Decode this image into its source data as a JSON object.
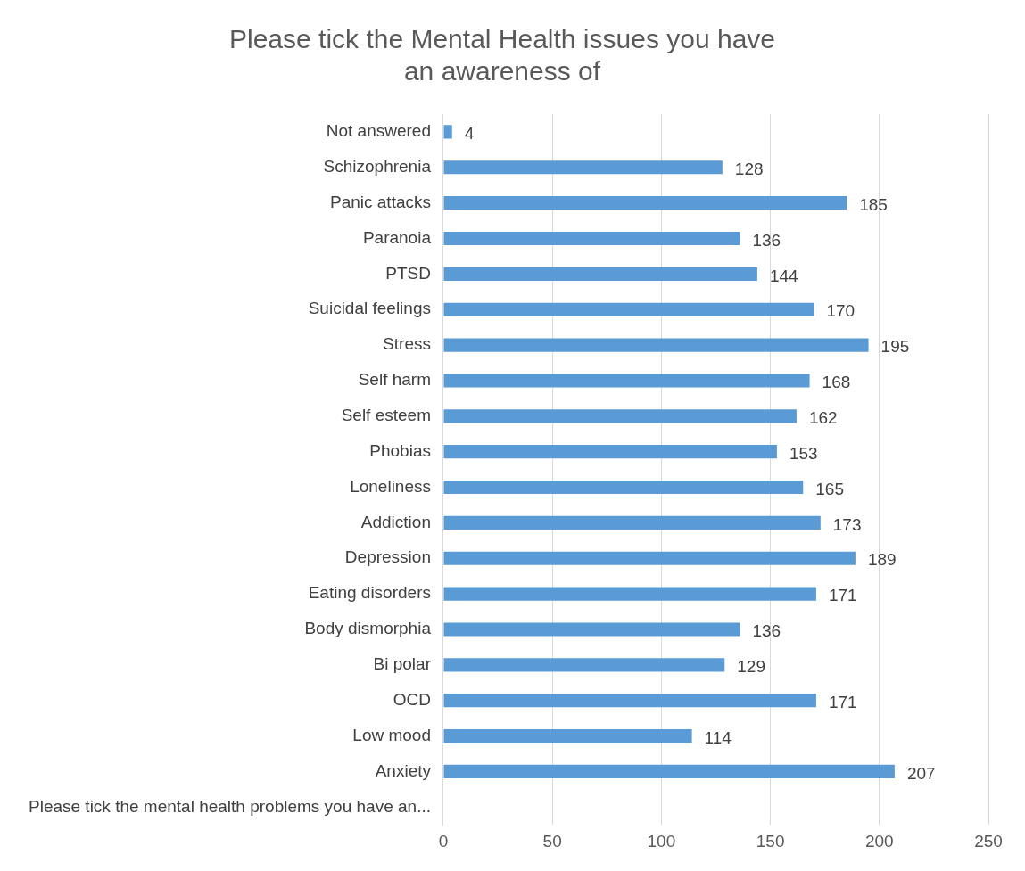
{
  "chart_data": {
    "type": "bar",
    "orientation": "horizontal",
    "title": "Please tick the Mental Health issues you have an awareness of",
    "categories": [
      "Not answered",
      "Schizophrenia",
      "Panic attacks",
      "Paranoia",
      "PTSD",
      "Suicidal feelings",
      "Stress",
      "Self harm",
      "Self esteem",
      "Phobias",
      "Loneliness",
      "Addiction",
      "Depression",
      "Eating disorders",
      "Body dismorphia",
      "Bi polar",
      "OCD",
      "Low mood",
      "Anxiety",
      "Please tick the mental health problems you have an..."
    ],
    "values": [
      4,
      128,
      185,
      136,
      144,
      170,
      195,
      168,
      162,
      153,
      165,
      173,
      189,
      171,
      136,
      129,
      171,
      114,
      207,
      null
    ],
    "color": "#5b9bd5",
    "xlim": [
      0,
      250
    ],
    "xticks": [
      0,
      50,
      100,
      150,
      200,
      250
    ],
    "grid": "x",
    "legend": false,
    "data_labels": true
  }
}
